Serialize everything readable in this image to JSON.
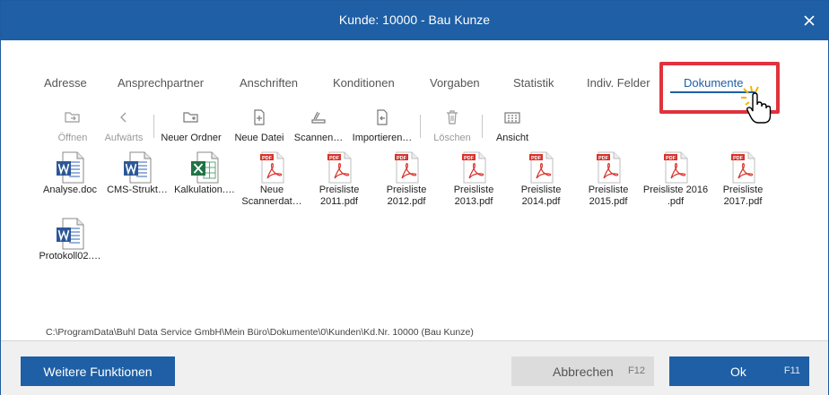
{
  "window": {
    "title": "Kunde: 10000 - Bau Kunze",
    "close_icon": "close-icon"
  },
  "tabs": [
    {
      "label": "Adresse"
    },
    {
      "label": "Ansprechpartner"
    },
    {
      "label": "Anschriften"
    },
    {
      "label": "Konditionen"
    },
    {
      "label": "Vorgaben"
    },
    {
      "label": "Statistik"
    },
    {
      "label": "Indiv. Felder"
    },
    {
      "label": "Dokumente",
      "active": true
    }
  ],
  "toolbar": [
    {
      "label": "Öffnen",
      "icon": "open-folder-icon",
      "enabled": false
    },
    {
      "label": "Aufwärts",
      "icon": "chevron-left-icon",
      "enabled": false
    },
    {
      "label": "Neuer Ordner",
      "icon": "new-folder-icon",
      "enabled": true
    },
    {
      "label": "Neue Datei",
      "icon": "new-file-icon",
      "enabled": true
    },
    {
      "label": "Scannen…",
      "icon": "scanner-icon",
      "enabled": true
    },
    {
      "label": "Importieren…",
      "icon": "import-icon",
      "enabled": true
    },
    {
      "label": "Löschen",
      "icon": "trash-icon",
      "enabled": false
    },
    {
      "label": "Ansicht",
      "icon": "grid-view-icon",
      "enabled": true
    }
  ],
  "files": [
    {
      "name": "Analyse.doc",
      "type": "word"
    },
    {
      "name": "CMS-Strukt…",
      "type": "word"
    },
    {
      "name": "Kalkulation.…",
      "type": "excel"
    },
    {
      "name": "Neue Scannerdat…",
      "type": "pdf"
    },
    {
      "name": "Preisliste 2011.pdf",
      "type": "pdf"
    },
    {
      "name": "Preisliste 2012.pdf",
      "type": "pdf"
    },
    {
      "name": "Preisliste 2013.pdf",
      "type": "pdf"
    },
    {
      "name": "Preisliste 2014.pdf",
      "type": "pdf"
    },
    {
      "name": "Preisliste 2015.pdf",
      "type": "pdf"
    },
    {
      "name": "Preisliste 2016 .pdf",
      "type": "pdf"
    },
    {
      "name": "Preisliste 2017.pdf",
      "type": "pdf"
    },
    {
      "name": "Protokoll02.…",
      "type": "word"
    }
  ],
  "path": "C:\\ProgramData\\Buhl Data Service GmbH\\Mein Büro\\Dokumente\\0\\Kunden\\Kd.Nr. 10000 (Bau Kunze)",
  "footer": {
    "more_label": "Weitere Funktionen",
    "cancel_label": "Abbrechen",
    "cancel_key": "F12",
    "ok_label": "Ok",
    "ok_key": "F11"
  },
  "colors": {
    "accent": "#1e5fa5",
    "highlight": "#e0333c",
    "pdf": "#d9322b",
    "word": "#2b5797",
    "excel": "#217346"
  }
}
